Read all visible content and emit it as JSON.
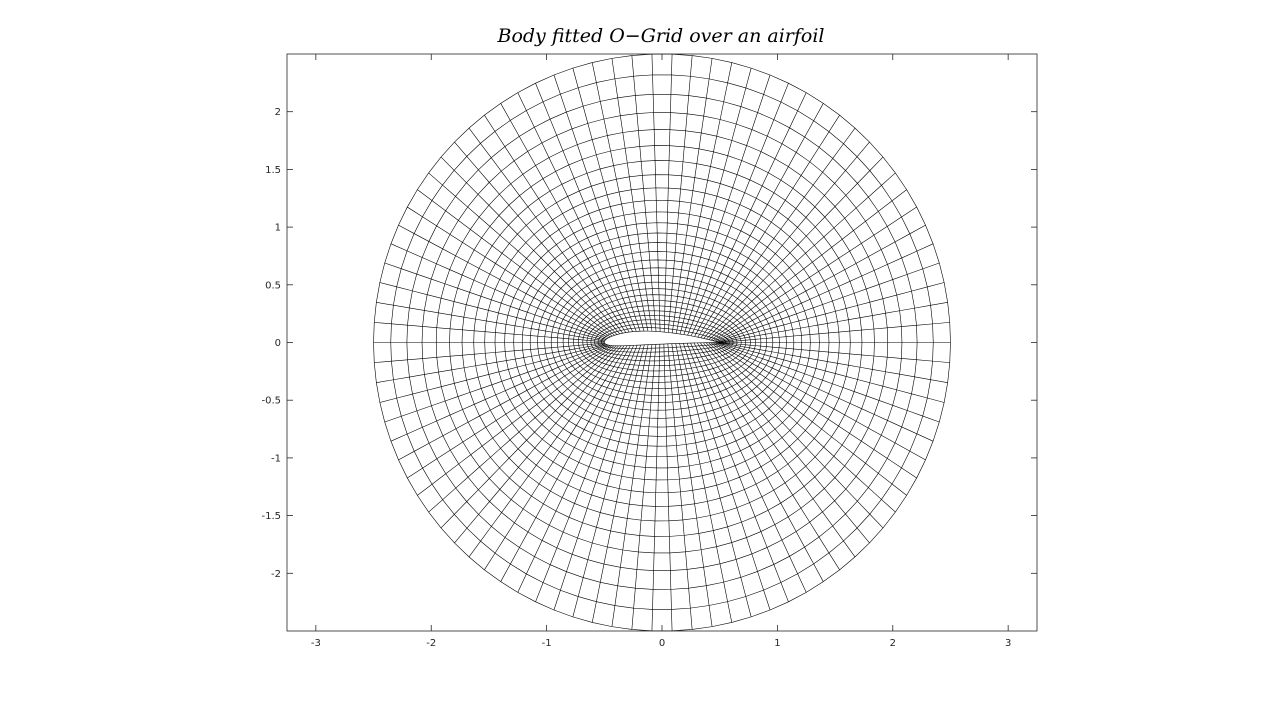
{
  "chart_data": {
    "type": "line",
    "title": "Body fitted O−Grid over an airfoil",
    "xlabel": "",
    "ylabel": "",
    "xlim": [
      -3.25,
      3.25
    ],
    "ylim": [
      -2.5,
      2.5
    ],
    "xticks": [
      -3,
      -2,
      -1,
      0,
      1,
      2,
      3
    ],
    "xtick_labels": [
      "-3",
      "-2",
      "-1",
      "0",
      "1",
      "2",
      "3"
    ],
    "yticks": [
      -2,
      -1.5,
      -1,
      -0.5,
      0,
      0.5,
      1,
      1.5,
      2
    ],
    "ytick_labels": [
      "-2",
      "-1.5",
      "-1",
      "-0.5",
      "0",
      "0.5",
      "1",
      "1.5",
      "2"
    ],
    "grid": false,
    "line_color": "#000000",
    "axes_color": "#262626",
    "mesh": {
      "kind": "O-grid",
      "outer_boundary": {
        "shape": "circle",
        "center": [
          0,
          0
        ],
        "radius": 2.5
      },
      "inner_boundary": {
        "shape": "airfoil",
        "leading_edge_x": -0.5,
        "trailing_edge_x": 0.5,
        "max_camber": 0.04,
        "camber_position": 0.4,
        "thickness": 0.12
      },
      "wrap_lines": 90,
      "radial_lines": 28,
      "radial_stretching": 1.8
    }
  }
}
